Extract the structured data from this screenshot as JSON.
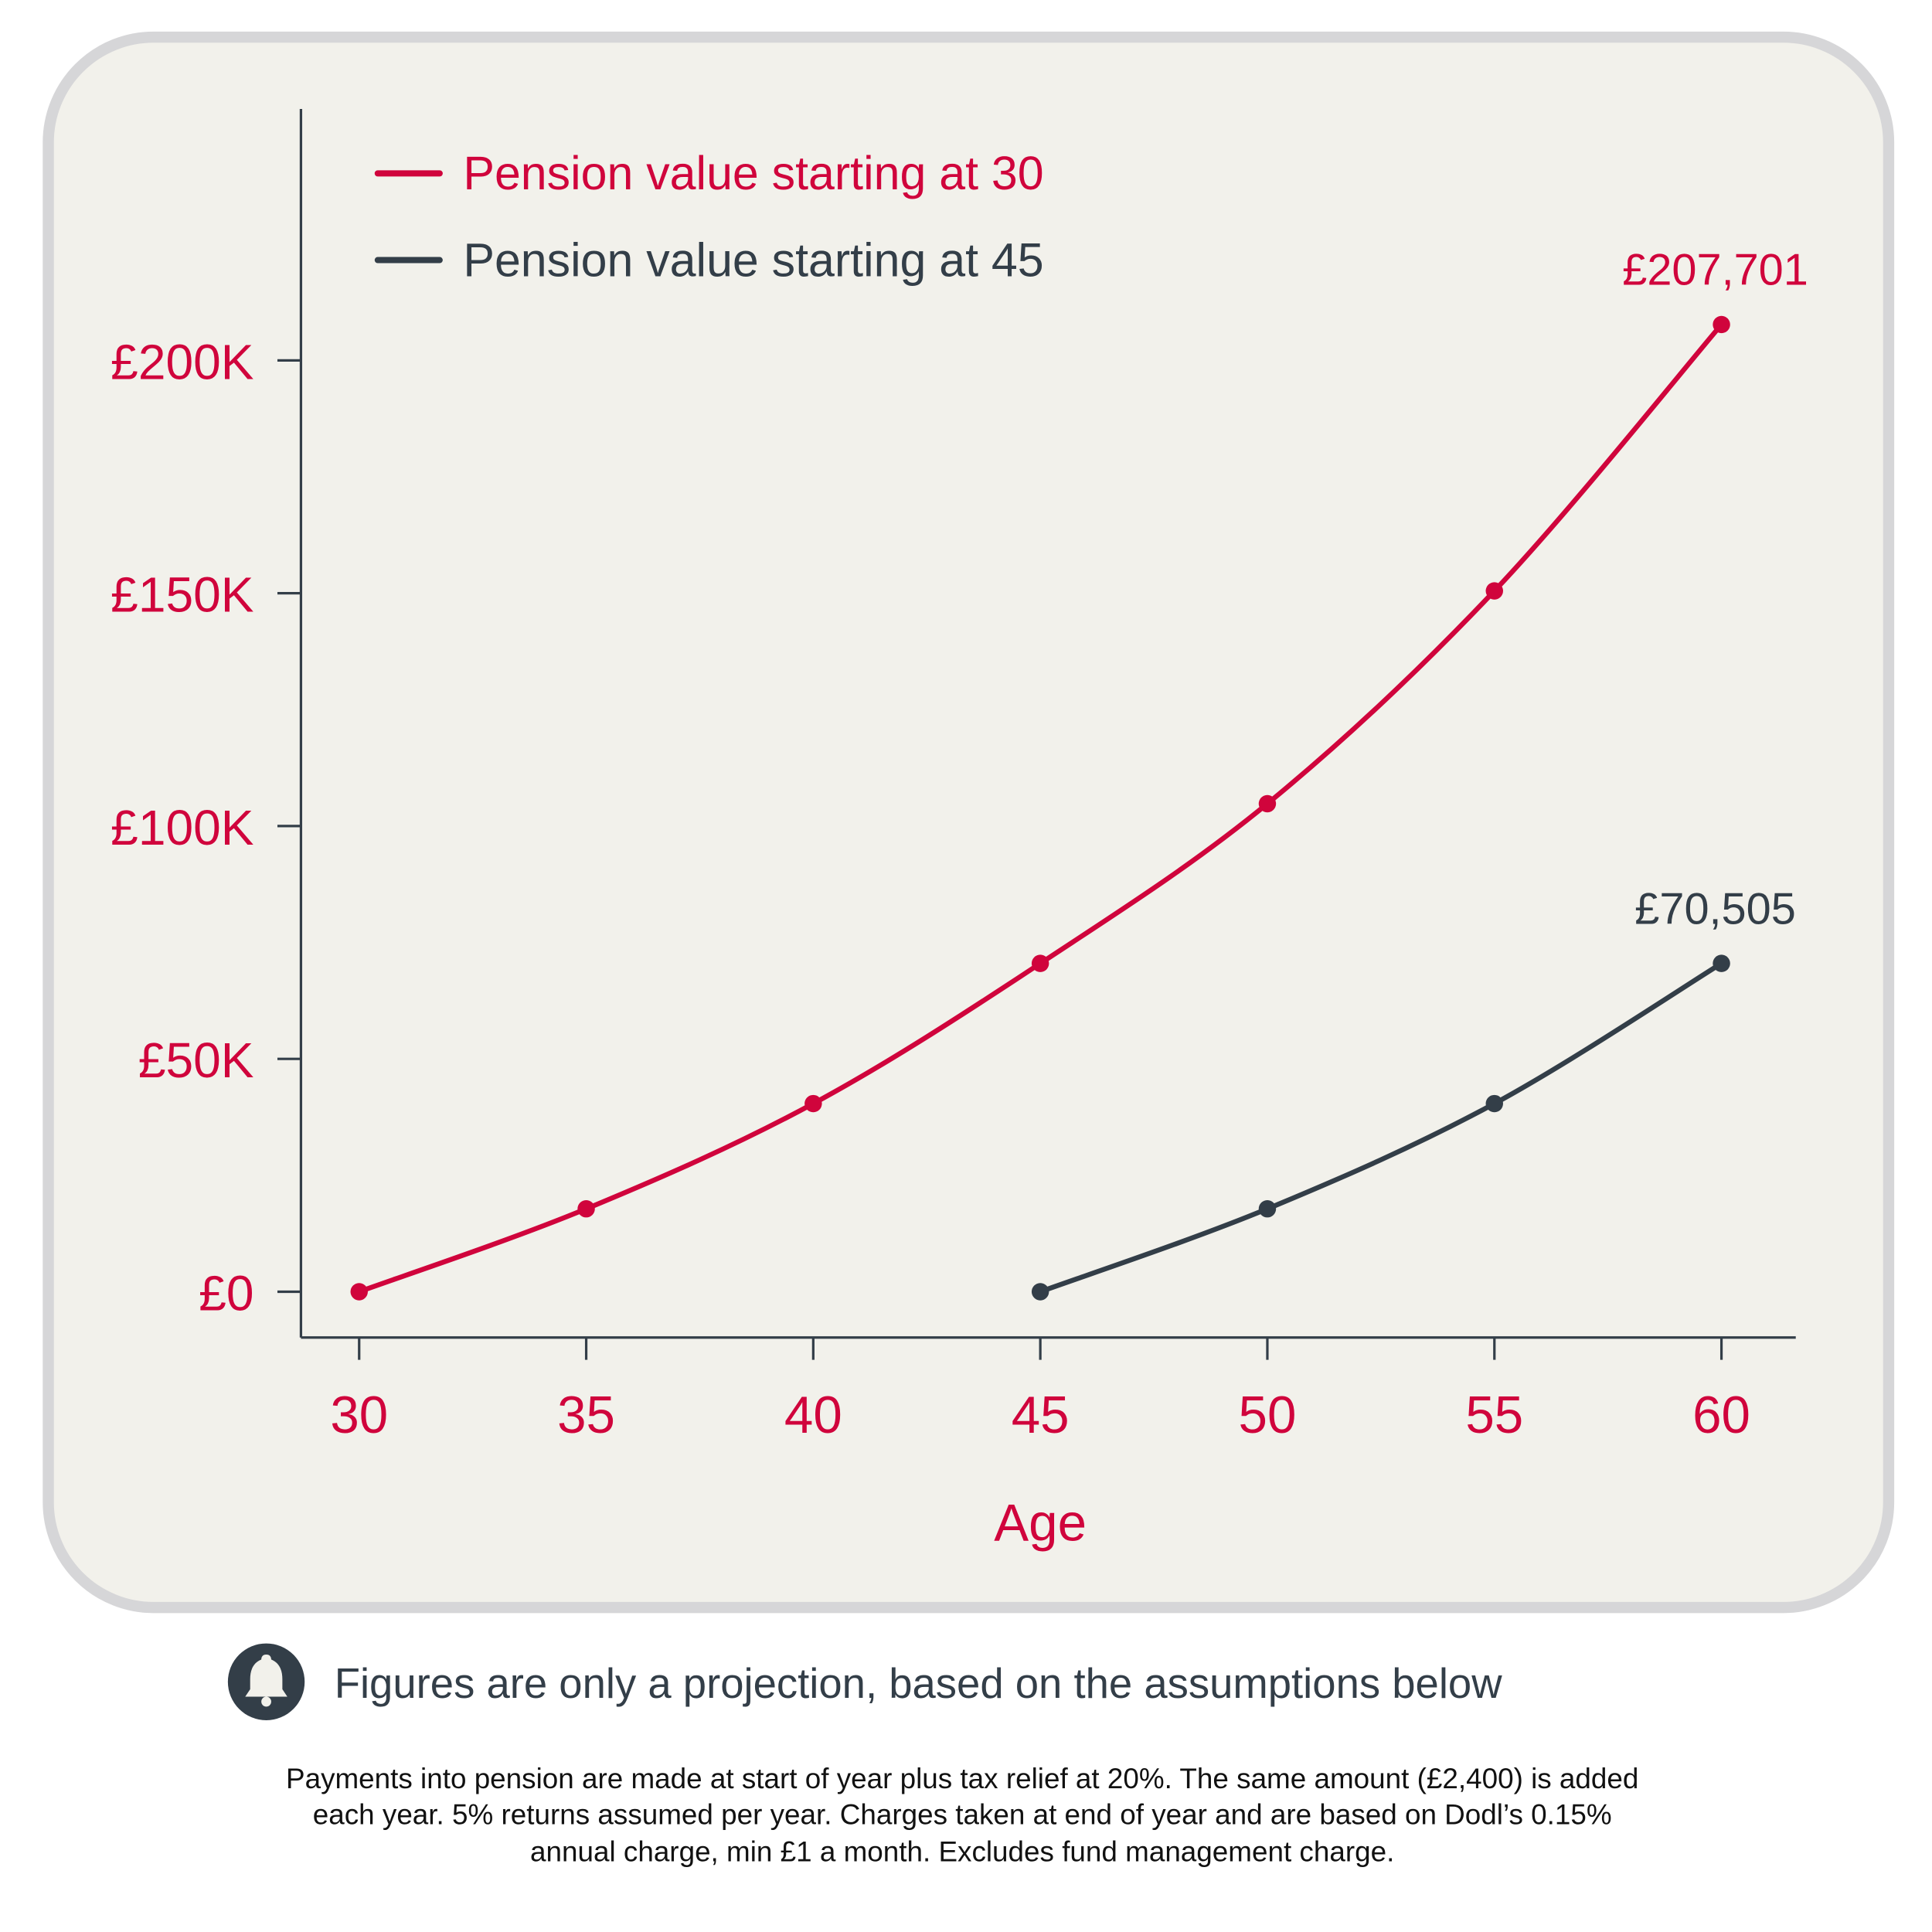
{
  "colors": {
    "primary": "#d0043c",
    "secondary": "#333e48",
    "panel": "#f2f1eb",
    "border": "#d6d6d8"
  },
  "chart_data": {
    "type": "line",
    "xlabel": "Age",
    "ylabel": "",
    "x_ticks": [
      "30",
      "35",
      "40",
      "45",
      "50",
      "55",
      "60"
    ],
    "y_ticks": [
      {
        "value": 0,
        "label": "£0"
      },
      {
        "value": 50000,
        "label": "£50K"
      },
      {
        "value": 100000,
        "label": "£100K"
      },
      {
        "value": 150000,
        "label": "£150K"
      },
      {
        "value": 200000,
        "label": "£200K"
      }
    ],
    "xlim": [
      29,
      61.5
    ],
    "ylim": [
      -10000,
      250000
    ],
    "grid": false,
    "legend_placement": "top-left",
    "series": [
      {
        "name": "Pension value starting at 30",
        "color": "#d0043c",
        "x": [
          30,
          35,
          40,
          45,
          50,
          55,
          60
        ],
        "y": [
          0,
          17800,
          40400,
          70505,
          104800,
          150500,
          207701
        ],
        "end_label": "£207,701"
      },
      {
        "name": "Pension value starting at 45",
        "color": "#333e48",
        "x": [
          45,
          50,
          55,
          60
        ],
        "y": [
          0,
          17800,
          40400,
          70505
        ],
        "end_label": "£70,505"
      }
    ]
  },
  "note": {
    "icon": "bell-icon",
    "text": "Figures are only a projection, based on the assumptions below"
  },
  "assumptions": [
    "Payments into pension are made at start of year plus tax relief at 20%. The same amount (£2,400) is added",
    "each year. 5% returns assumed per year. Charges taken at end of year and are based on Dodl’s 0.15%",
    "annual charge, min £1 a month. Excludes fund management charge."
  ]
}
